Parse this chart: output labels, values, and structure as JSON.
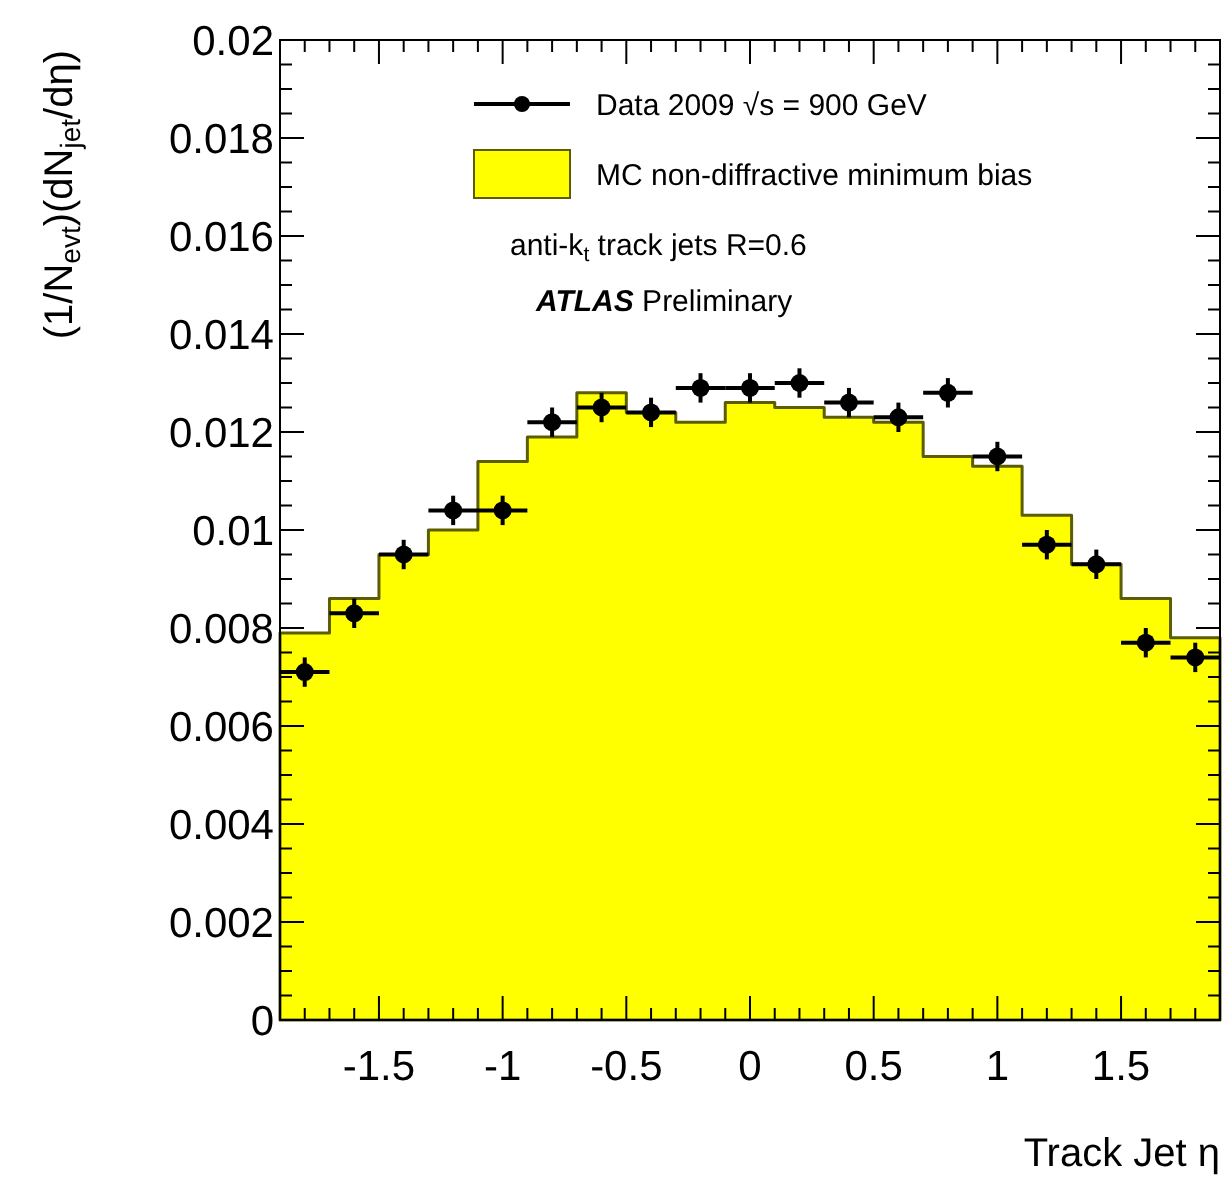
{
  "chart_data": {
    "type": "histogram",
    "xlabel": "Track Jet η",
    "ylabel": "(1/N$_{evt}$)(dN$_{jet}$/dη)",
    "annotations": [
      "anti-k$_{t}$ track jets R=0.6",
      "ATLAS Preliminary"
    ],
    "bins": [
      -1.9,
      -1.7,
      -1.5,
      -1.3,
      -1.1,
      -0.9,
      -0.7,
      -0.5,
      -0.3,
      -0.1,
      0.1,
      0.3,
      0.5,
      0.7,
      0.9,
      1.1,
      1.3,
      1.5,
      1.7,
      1.9
    ],
    "series": [
      {
        "name": "Data 2009 √s = 900 GeV",
        "type": "scatter",
        "color": "#000000",
        "marker": "circle",
        "x": [
          -1.8,
          -1.6,
          -1.4,
          -1.2,
          -1.0,
          -0.8,
          -0.6,
          -0.4,
          -0.2,
          0.0,
          0.2,
          0.4,
          0.6,
          0.8,
          1.0,
          1.2,
          1.4,
          1.6,
          1.8
        ],
        "values": [
          0.0071,
          0.0083,
          0.0095,
          0.0104,
          0.0104,
          0.0122,
          0.0125,
          0.0124,
          0.0129,
          0.0129,
          0.013,
          0.0126,
          0.0123,
          0.0128,
          0.0115,
          0.0097,
          0.0093,
          0.0077,
          0.0074
        ],
        "errors": [
          0.0003,
          0.0003,
          0.0003,
          0.0003,
          0.0003,
          0.0003,
          0.0003,
          0.0003,
          0.0003,
          0.0003,
          0.0003,
          0.0003,
          0.0003,
          0.0003,
          0.0003,
          0.0003,
          0.0003,
          0.0003,
          0.0003
        ],
        "xerrors": [
          0.1,
          0.1,
          0.1,
          0.1,
          0.1,
          0.1,
          0.1,
          0.1,
          0.1,
          0.1,
          0.1,
          0.1,
          0.1,
          0.1,
          0.1,
          0.1,
          0.1,
          0.1,
          0.1
        ]
      },
      {
        "name": "MC non-diffractive minimum bias",
        "color": "#ffff00",
        "values": [
          0.0079,
          0.0086,
          0.0095,
          0.01,
          0.0114,
          0.0119,
          0.0128,
          0.0124,
          0.0122,
          0.0126,
          0.0125,
          0.0123,
          0.0122,
          0.0115,
          0.0113,
          0.0103,
          0.0093,
          0.0086,
          0.0078
        ]
      }
    ],
    "xlim": [
      -1.9,
      1.9
    ],
    "ylim": [
      0,
      0.02
    ],
    "xticks": [
      {
        "value": -1.8,
        "label": null
      },
      {
        "value": -1.7,
        "label": null
      },
      {
        "value": -1.6,
        "label": null
      },
      {
        "value": -1.5,
        "label": "-1.5"
      },
      {
        "value": -1.4,
        "label": null
      },
      {
        "value": -1.3,
        "label": null
      },
      {
        "value": -1.2,
        "label": null
      },
      {
        "value": -1.1,
        "label": null
      },
      {
        "value": -1,
        "label": "-1"
      },
      {
        "value": -0.9,
        "label": null
      },
      {
        "value": -0.8,
        "label": null
      },
      {
        "value": -0.7,
        "label": null
      },
      {
        "value": -0.6,
        "label": null
      },
      {
        "value": -0.5,
        "label": "-0.5"
      },
      {
        "value": -0.4,
        "label": null
      },
      {
        "value": -0.3,
        "label": null
      },
      {
        "value": -0.2,
        "label": null
      },
      {
        "value": -0.1,
        "label": null
      },
      0,
      {
        "value": 0.1,
        "label": null
      },
      {
        "value": 0.2,
        "label": null
      },
      {
        "value": 0.3,
        "label": null
      },
      {
        "value": 0.4,
        "label": null
      },
      0.5,
      {
        "value": 0.6,
        "label": null
      },
      {
        "value": 0.7,
        "label": null
      },
      {
        "value": 0.8,
        "label": null
      },
      {
        "value": 0.9,
        "label": null
      },
      1,
      {
        "value": 1.1,
        "label": null
      },
      {
        "value": 1.2,
        "label": null
      },
      {
        "value": 1.3,
        "label": null
      },
      {
        "value": 1.4,
        "label": null
      },
      1.5,
      {
        "value": 1.6,
        "label": null
      },
      {
        "value": 1.7,
        "label": null
      },
      {
        "value": 1.8,
        "label": null
      }
    ],
    "yticks": [
      0,
      {
        "value": 0.0005,
        "label": null
      },
      {
        "value": 0.001,
        "label": null
      },
      {
        "value": 0.0015,
        "label": null
      },
      0.002,
      {
        "value": 0.0025,
        "label": null
      },
      {
        "value": 0.003,
        "label": null
      },
      {
        "value": 0.0035,
        "label": null
      },
      0.004,
      {
        "value": 0.0045,
        "label": null
      },
      {
        "value": 0.005,
        "label": null
      },
      {
        "value": 0.0055,
        "label": null
      },
      0.006,
      {
        "value": 0.0065,
        "label": null
      },
      {
        "value": 0.007,
        "label": null
      },
      {
        "value": 0.0075,
        "label": null
      },
      0.008,
      {
        "value": 0.0085,
        "label": null
      },
      {
        "value": 0.009,
        "label": null
      },
      {
        "value": 0.0095,
        "label": null
      },
      0.01,
      {
        "value": 0.0105,
        "label": null
      },
      {
        "value": 0.011,
        "label": null
      },
      {
        "value": 0.0115,
        "label": null
      },
      0.012,
      {
        "value": 0.0125,
        "label": null
      },
      {
        "value": 0.013,
        "label": null
      },
      {
        "value": 0.0135,
        "label": null
      },
      0.014,
      {
        "value": 0.0145,
        "label": null
      },
      {
        "value": 0.015,
        "label": null
      },
      {
        "value": 0.0155,
        "label": null
      },
      0.016,
      {
        "value": 0.0165,
        "label": null
      },
      {
        "value": 0.017,
        "label": null
      },
      {
        "value": 0.0175,
        "label": null
      },
      0.018,
      {
        "value": 0.0185,
        "label": null
      },
      {
        "value": 0.019,
        "label": null
      },
      {
        "value": 0.0195,
        "label": null
      },
      0.02
    ],
    "legend": "top right"
  }
}
